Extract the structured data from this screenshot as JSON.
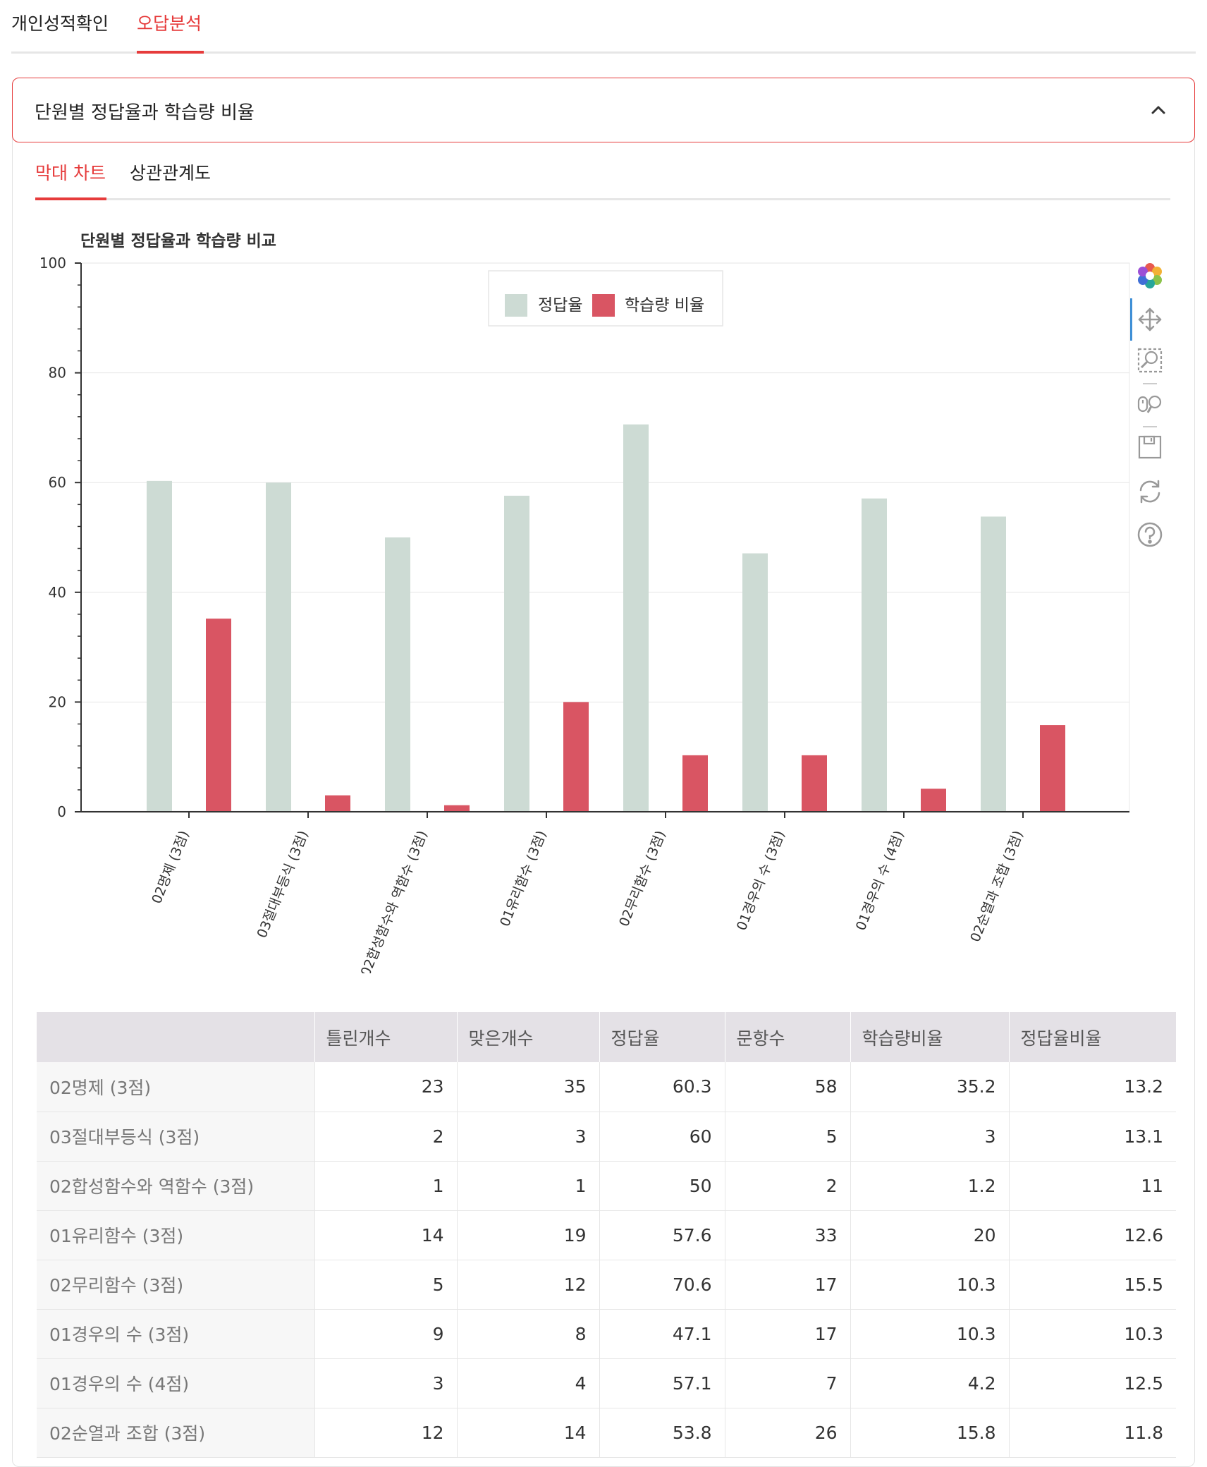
{
  "top_tabs": {
    "items": [
      "개인성적확인",
      "오답분석"
    ],
    "active_index": 1
  },
  "section": {
    "title": "단원별 정답율과 학습량 비율"
  },
  "sub_tabs": {
    "items": [
      "막대 차트",
      "상관관계도"
    ],
    "active_index": 0
  },
  "colors": {
    "accent": "#e63b3b",
    "correct": "#cddbd4",
    "study": "#d95563"
  },
  "toolbar": {
    "icons": [
      "logo-icon",
      "move-icon",
      "zoom-select-icon",
      "wheel-zoom-icon",
      "save-icon",
      "reset-icon",
      "help-icon"
    ]
  },
  "chart_data": {
    "type": "bar",
    "title": "단원별 정답율과 학습량 비교",
    "categories": [
      "02명제 (3점)",
      "03절대부등식 (3점)",
      "02합성함수와 역함수 (3점)",
      "01유리함수 (3점)",
      "02무리함수 (3점)",
      "01경우의 수 (3점)",
      "01경우의 수 (4점)",
      "02순열과 조합 (3점)"
    ],
    "series": [
      {
        "name": "정답율",
        "values": [
          60.3,
          60,
          50,
          57.6,
          70.6,
          47.1,
          57.1,
          53.8
        ]
      },
      {
        "name": "학습량 비율",
        "values": [
          35.2,
          3,
          1.2,
          20,
          10.3,
          10.3,
          4.2,
          15.8
        ]
      }
    ],
    "ylim": [
      0,
      100
    ],
    "yticks": [
      0,
      20,
      40,
      60,
      80,
      100
    ],
    "legend": "top-center",
    "grid": true
  },
  "table": {
    "columns": [
      "",
      "틀린개수",
      "맞은개수",
      "정답율",
      "문항수",
      "학습량비율",
      "정답율비율"
    ],
    "rows": [
      [
        "02명제 (3점)",
        "23",
        "35",
        "60.3",
        "58",
        "35.2",
        "13.2"
      ],
      [
        "03절대부등식 (3점)",
        "2",
        "3",
        "60",
        "5",
        "3",
        "13.1"
      ],
      [
        "02합성함수와 역함수 (3점)",
        "1",
        "1",
        "50",
        "2",
        "1.2",
        "11"
      ],
      [
        "01유리함수 (3점)",
        "14",
        "19",
        "57.6",
        "33",
        "20",
        "12.6"
      ],
      [
        "02무리함수 (3점)",
        "5",
        "12",
        "70.6",
        "17",
        "10.3",
        "15.5"
      ],
      [
        "01경우의 수 (3점)",
        "9",
        "8",
        "47.1",
        "17",
        "10.3",
        "10.3"
      ],
      [
        "01경우의 수 (4점)",
        "3",
        "4",
        "57.1",
        "7",
        "4.2",
        "12.5"
      ],
      [
        "02순열과 조합 (3점)",
        "12",
        "14",
        "53.8",
        "26",
        "15.8",
        "11.8"
      ]
    ]
  }
}
